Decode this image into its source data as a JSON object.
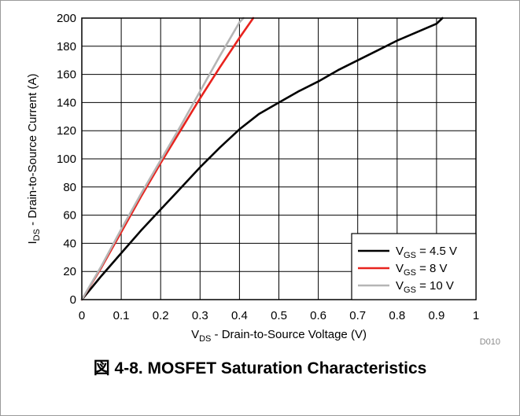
{
  "chart_data": {
    "type": "line",
    "xlabel": {
      "base": "V",
      "sub": "DS",
      "rest": " - Drain-to-Source Voltage (V)"
    },
    "ylabel": {
      "base": "I",
      "sub": "DS",
      "rest": " - Drain-to-Source Current (A)"
    },
    "xlim": [
      0,
      1
    ],
    "ylim": [
      0,
      200
    ],
    "xticks": [
      "0",
      "0.1",
      "0.2",
      "0.3",
      "0.4",
      "0.5",
      "0.6",
      "0.7",
      "0.8",
      "0.9",
      "1"
    ],
    "yticks": [
      "0",
      "20",
      "40",
      "60",
      "80",
      "100",
      "120",
      "140",
      "160",
      "180",
      "200"
    ],
    "grid": true,
    "legend_position": "bottom-right",
    "series": [
      {
        "label": {
          "base": "V",
          "sub": "GS",
          "rest": " = 4.5 V"
        },
        "color": "#000000",
        "x": [
          0,
          0.05,
          0.1,
          0.15,
          0.2,
          0.25,
          0.3,
          0.35,
          0.4,
          0.45,
          0.5,
          0.55,
          0.6,
          0.65,
          0.7,
          0.75,
          0.8,
          0.85,
          0.9,
          0.915
        ],
        "y": [
          0,
          17,
          33,
          49,
          64,
          79,
          94,
          108,
          121,
          132,
          140,
          148,
          155,
          163,
          170,
          177,
          184,
          190,
          196,
          200
        ]
      },
      {
        "label": {
          "base": "V",
          "sub": "GS",
          "rest": " = 8 V"
        },
        "color": "#e8231e",
        "x": [
          0,
          0.05,
          0.1,
          0.15,
          0.2,
          0.25,
          0.3,
          0.35,
          0.4,
          0.435
        ],
        "y": [
          0,
          23,
          48,
          73,
          97,
          120,
          143,
          165,
          186,
          200
        ]
      },
      {
        "label": {
          "base": "V",
          "sub": "GS",
          "rest": " = 10 V"
        },
        "color": "#b5b5b5",
        "x": [
          0,
          0.05,
          0.1,
          0.15,
          0.2,
          0.25,
          0.3,
          0.35,
          0.4,
          0.41
        ],
        "y": [
          0,
          24,
          50,
          75,
          99,
          123,
          148,
          173,
          197,
          200
        ]
      }
    ],
    "annotation": "D010"
  },
  "caption": "図 4-8. MOSFET Saturation Characteristics"
}
